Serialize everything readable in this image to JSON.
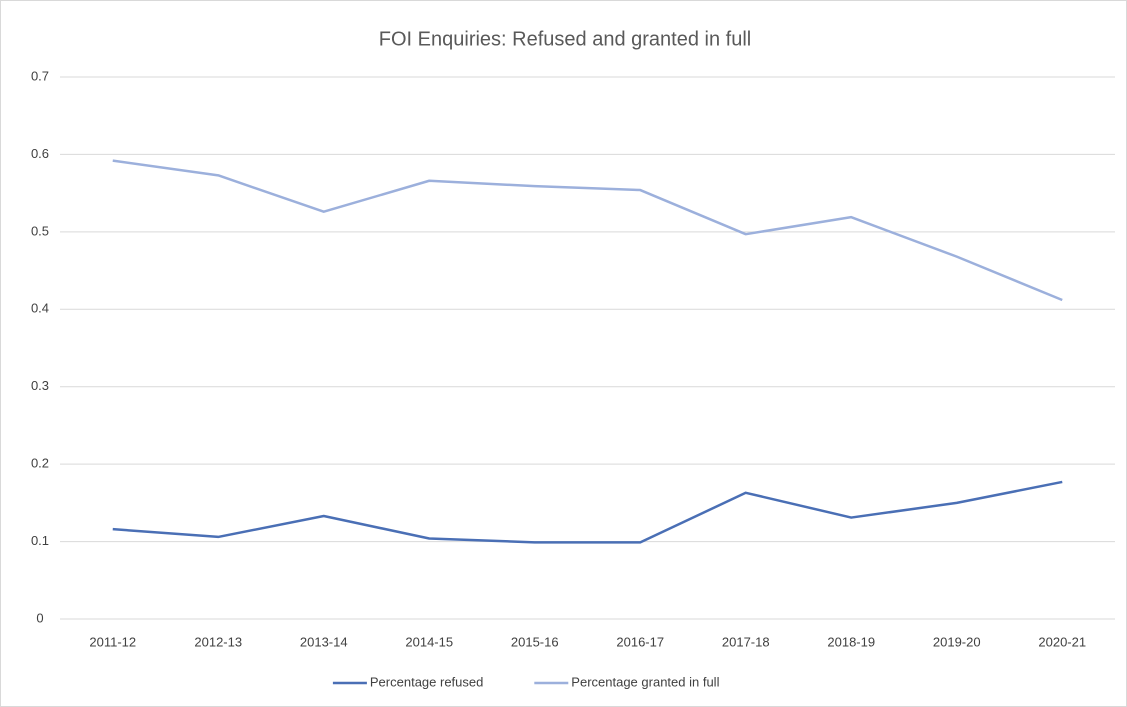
{
  "chart_data": {
    "type": "line",
    "title": "FOI Enquiries: Refused and granted in full",
    "categories": [
      "2011-12",
      "2012-13",
      "2013-14",
      "2014-15",
      "2015-16",
      "2016-17",
      "2017-18",
      "2018-19",
      "2019-20",
      "2020-21"
    ],
    "series": [
      {
        "name": "Percentage refused",
        "color": "#4a6fb5",
        "values": [
          0.116,
          0.106,
          0.133,
          0.104,
          0.099,
          0.099,
          0.163,
          0.131,
          0.15,
          0.177
        ]
      },
      {
        "name": "Percentage granted in full",
        "color": "#9cb0dc",
        "values": [
          0.592,
          0.573,
          0.526,
          0.566,
          0.559,
          0.554,
          0.497,
          0.519,
          0.468,
          0.412
        ]
      }
    ],
    "ylim": [
      0,
      0.7
    ],
    "yticks": [
      0,
      0.1,
      0.2,
      0.3,
      0.4,
      0.5,
      0.6,
      0.7
    ],
    "grid": true,
    "legend": "bottom"
  }
}
